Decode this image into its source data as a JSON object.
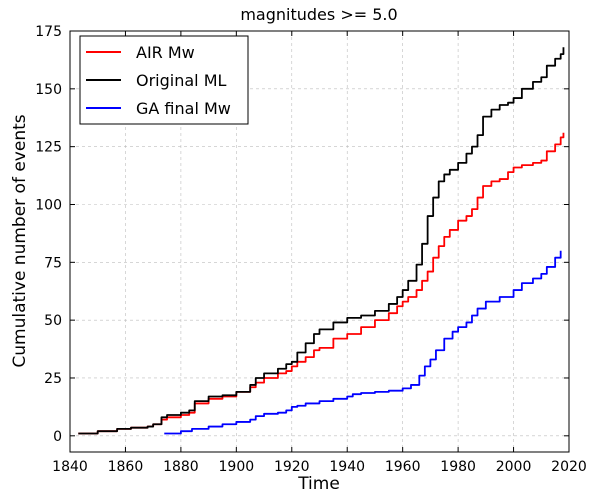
{
  "chart_data": {
    "type": "line",
    "title": "magnitudes >= 5.0",
    "xlabel": "Time",
    "ylabel": "Cumulative number of events",
    "xlim": [
      1840,
      2020
    ],
    "ylim": [
      -7,
      175
    ],
    "xticks": [
      1840,
      1860,
      1880,
      1900,
      1920,
      1940,
      1960,
      1980,
      2000,
      2020
    ],
    "yticks": [
      0,
      25,
      50,
      75,
      100,
      125,
      150,
      175
    ],
    "xtick_labels": [
      "1840",
      "1860",
      "1880",
      "1900",
      "1920",
      "1940",
      "1960",
      "1980",
      "2000",
      "2020"
    ],
    "ytick_labels": [
      "0",
      "25",
      "50",
      "75",
      "100",
      "125",
      "150",
      "175"
    ],
    "grid": true,
    "legend_position": "top-left",
    "series": [
      {
        "name": "AIR Mw",
        "color": "#ff0000",
        "x": [
          1843,
          1850,
          1857,
          1862,
          1868,
          1870,
          1873,
          1875,
          1880,
          1883,
          1885,
          1890,
          1895,
          1900,
          1905,
          1907,
          1910,
          1915,
          1918,
          1920,
          1922,
          1925,
          1928,
          1930,
          1935,
          1940,
          1945,
          1950,
          1955,
          1958,
          1960,
          1962,
          1965,
          1967,
          1969,
          1971,
          1973,
          1975,
          1977,
          1980,
          1983,
          1985,
          1987,
          1989,
          1992,
          1995,
          1998,
          2000,
          2003,
          2007,
          2010,
          2012,
          2015,
          2017,
          2018
        ],
        "values": [
          1,
          2,
          3,
          3.5,
          4,
          5,
          7,
          8,
          9,
          10,
          14,
          16,
          17,
          19,
          21,
          23,
          25,
          27,
          28,
          30,
          32,
          34,
          37,
          38,
          42,
          44,
          47,
          50,
          53,
          56,
          58,
          60,
          63,
          67,
          71,
          77,
          82,
          86,
          89,
          93,
          95,
          98,
          103,
          108,
          110,
          111,
          114,
          116,
          117,
          118,
          119,
          123,
          126,
          129,
          131
        ]
      },
      {
        "name": "Original ML",
        "color": "#000000",
        "x": [
          1843,
          1850,
          1857,
          1862,
          1868,
          1870,
          1873,
          1875,
          1880,
          1883,
          1885,
          1890,
          1895,
          1900,
          1905,
          1907,
          1910,
          1915,
          1918,
          1920,
          1922,
          1925,
          1928,
          1930,
          1935,
          1940,
          1945,
          1950,
          1955,
          1958,
          1960,
          1962,
          1965,
          1967,
          1969,
          1971,
          1973,
          1975,
          1977,
          1980,
          1983,
          1985,
          1987,
          1989,
          1992,
          1995,
          1998,
          2000,
          2003,
          2007,
          2010,
          2012,
          2015,
          2017,
          2018
        ],
        "values": [
          1,
          2,
          3,
          3.5,
          4,
          5,
          8,
          9,
          10,
          11,
          15,
          17,
          17.5,
          19,
          22,
          25,
          27,
          29,
          31,
          32,
          36,
          40,
          44,
          46,
          49,
          51,
          52,
          54,
          57,
          60,
          63,
          67,
          74,
          83,
          95,
          103,
          110,
          113,
          115,
          118,
          122,
          125,
          130,
          138,
          141,
          143,
          144,
          146,
          150,
          153,
          155,
          160,
          163,
          165,
          168
        ]
      },
      {
        "name": "GA final Mw",
        "color": "#0000ff",
        "x": [
          1874,
          1880,
          1884,
          1890,
          1895,
          1900,
          1905,
          1907,
          1910,
          1915,
          1918,
          1920,
          1922,
          1925,
          1930,
          1935,
          1940,
          1942,
          1945,
          1950,
          1955,
          1960,
          1963,
          1966,
          1968,
          1970,
          1972,
          1975,
          1978,
          1980,
          1983,
          1985,
          1987,
          1990,
          1995,
          2000,
          2003,
          2007,
          2010,
          2012,
          2015,
          2017
        ],
        "values": [
          1,
          2,
          3,
          4,
          5,
          6,
          7,
          8.5,
          9.5,
          10,
          11,
          12.5,
          13,
          14,
          15,
          16,
          17,
          18,
          18.5,
          19,
          19.5,
          20.5,
          22,
          26,
          30,
          33,
          37,
          42,
          45,
          47,
          49,
          52,
          55,
          58,
          60,
          63,
          66,
          68,
          70,
          73,
          77,
          80
        ]
      }
    ]
  }
}
